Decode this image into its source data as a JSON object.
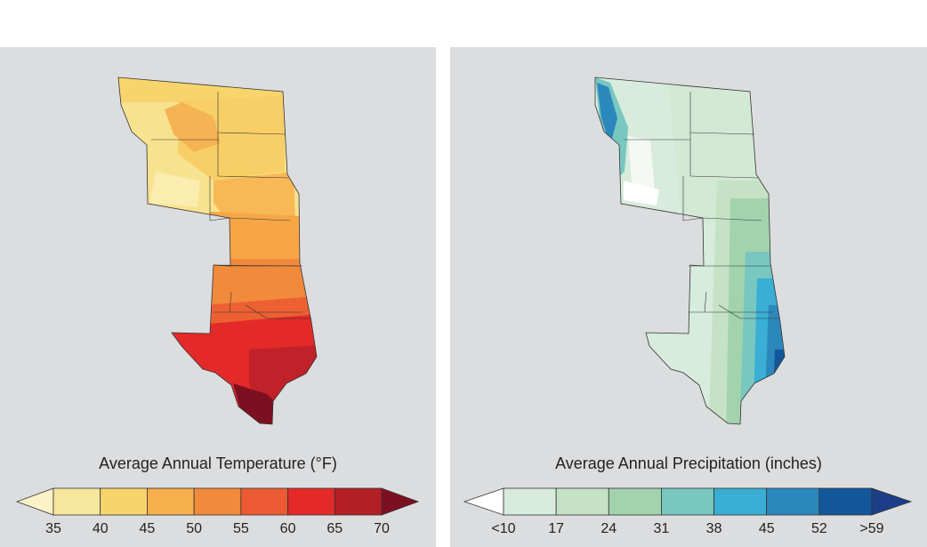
{
  "temperature": {
    "title": "Average Annual Temperature (°F)",
    "ticks": [
      "35",
      "40",
      "45",
      "50",
      "55",
      "60",
      "65",
      "70"
    ],
    "colors": [
      "#fbf3c7",
      "#f6e79d",
      "#f8d56c",
      "#f7ae4c",
      "#f28a3c",
      "#ec5a34",
      "#e32a28",
      "#b41f26",
      "#7d1020"
    ]
  },
  "precipitation": {
    "title": "Average Annual Precipitation (inches)",
    "ticks": [
      "<10",
      "17",
      "24",
      "31",
      "38",
      "45",
      "52",
      ">59"
    ],
    "colors": [
      "#ffffff",
      "#d7ecdc",
      "#c5e3c4",
      "#a2d3ad",
      "#78c7c0",
      "#3aaed4",
      "#2c88bc",
      "#13579b",
      "#1c3e88"
    ]
  }
}
